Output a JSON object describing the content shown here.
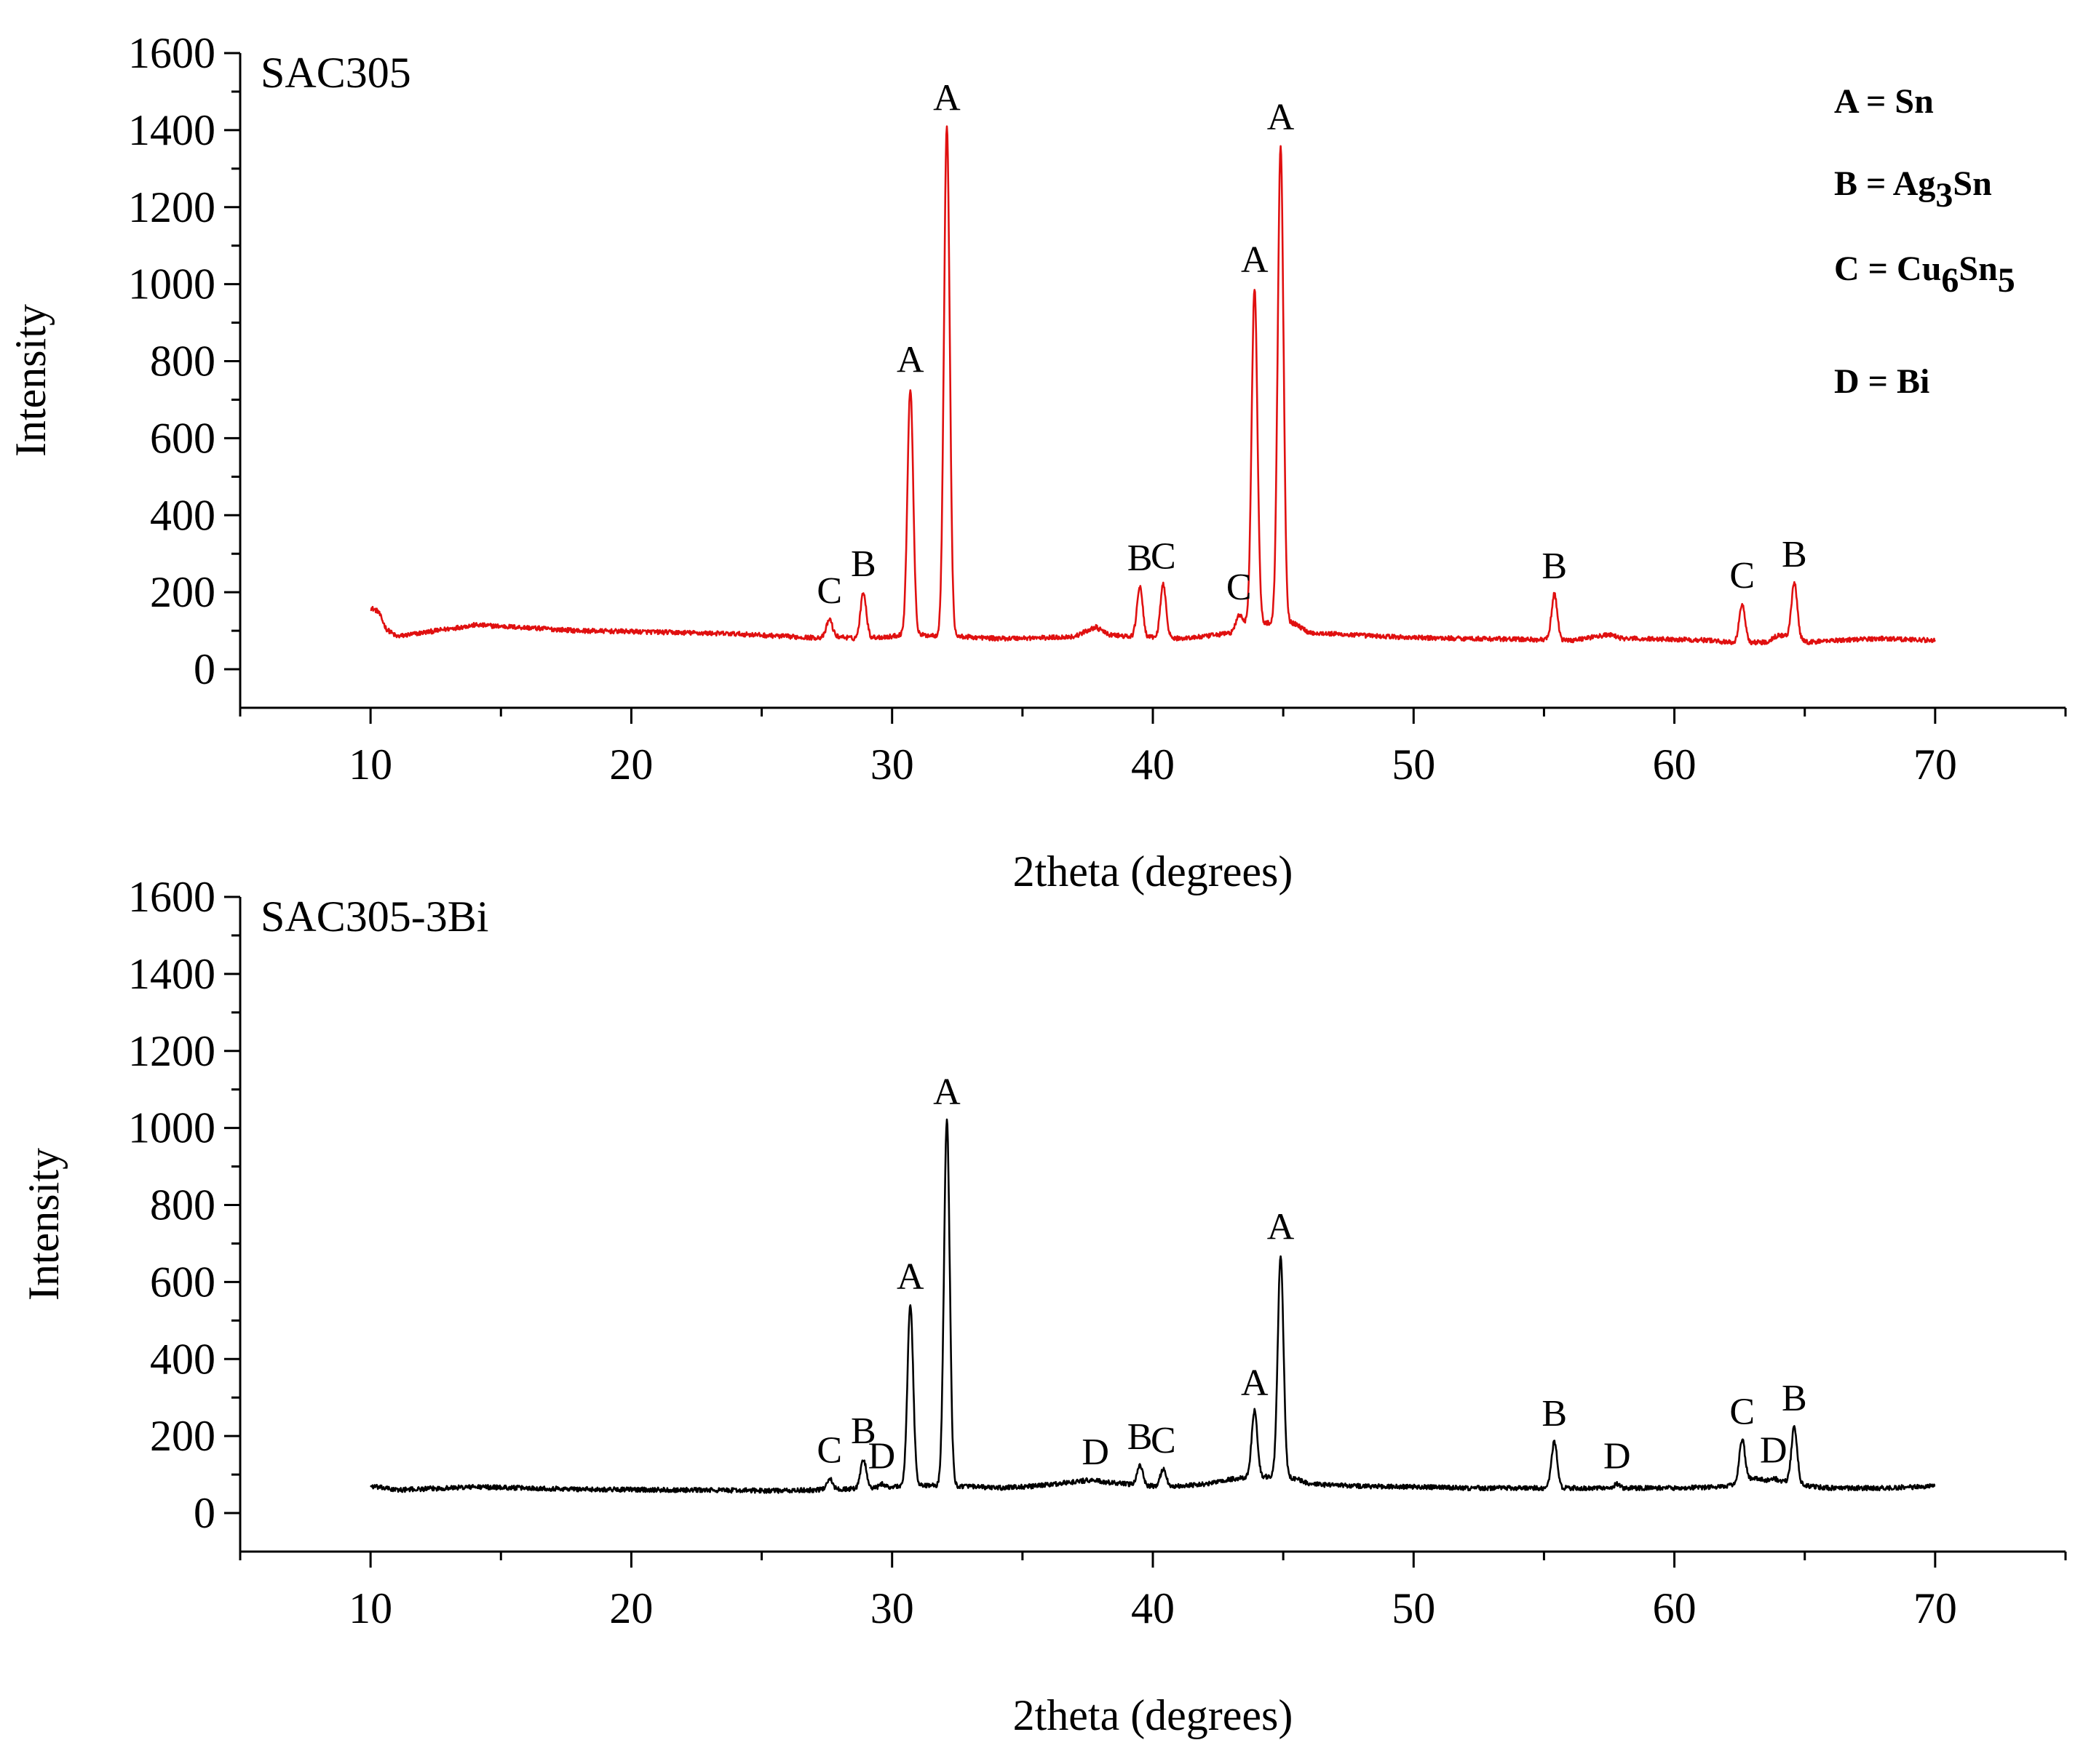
{
  "chart_data": [
    {
      "type": "line",
      "title": "SAC305",
      "xlabel": "2theta (degrees)",
      "ylabel": "Intensity",
      "xlim": [
        5,
        75
      ],
      "ylim": [
        -100,
        1600
      ],
      "xticks": [
        10,
        20,
        30,
        40,
        50,
        60,
        70
      ],
      "yticks": [
        0,
        200,
        400,
        600,
        800,
        1000,
        1200,
        1400,
        1600
      ],
      "grid": false,
      "color": "#e01010",
      "baseline": [
        [
          10.0,
          160
        ],
        [
          10.3,
          150
        ],
        [
          10.6,
          105
        ],
        [
          11.0,
          85
        ],
        [
          11.5,
          90
        ],
        [
          12.5,
          100
        ],
        [
          14.0,
          115
        ],
        [
          16.0,
          108
        ],
        [
          18.0,
          100
        ],
        [
          20.0,
          98
        ],
        [
          22.0,
          95
        ],
        [
          24.0,
          92
        ],
        [
          26.0,
          85
        ],
        [
          27.0,
          82
        ],
        [
          28.0,
          85
        ],
        [
          28.5,
          80
        ],
        [
          30.0,
          85
        ],
        [
          30.3,
          90
        ],
        [
          31.5,
          88
        ],
        [
          32.6,
          85
        ],
        [
          34.0,
          80
        ],
        [
          36.0,
          82
        ],
        [
          37.0,
          85
        ],
        [
          37.8,
          110
        ],
        [
          38.3,
          90
        ],
        [
          39.0,
          85
        ],
        [
          41.0,
          80
        ],
        [
          42.0,
          85
        ],
        [
          43.0,
          95
        ],
        [
          43.5,
          120
        ],
        [
          45.4,
          120
        ],
        [
          46.0,
          95
        ],
        [
          48.0,
          88
        ],
        [
          50.0,
          82
        ],
        [
          52.0,
          80
        ],
        [
          54.0,
          78
        ],
        [
          56.0,
          75
        ],
        [
          57.5,
          90
        ],
        [
          58.0,
          80
        ],
        [
          60.0,
          78
        ],
        [
          61.5,
          75
        ],
        [
          62.0,
          70
        ],
        [
          63.5,
          70
        ],
        [
          64.0,
          90
        ],
        [
          65.2,
          70
        ],
        [
          66.0,
          75
        ],
        [
          68.0,
          80
        ],
        [
          70.0,
          75
        ]
      ],
      "peaks": [
        {
          "x": 27.6,
          "intensity": 130,
          "label": "C"
        },
        {
          "x": 28.9,
          "intensity": 200,
          "label": "B"
        },
        {
          "x": 30.7,
          "intensity": 730,
          "label": "A"
        },
        {
          "x": 32.1,
          "intensity": 1410,
          "label": "A"
        },
        {
          "x": 39.5,
          "intensity": 215,
          "label": "B"
        },
        {
          "x": 40.4,
          "intensity": 220,
          "label": "C"
        },
        {
          "x": 43.3,
          "intensity": 140,
          "label": "C"
        },
        {
          "x": 43.9,
          "intensity": 990,
          "label": "A"
        },
        {
          "x": 44.9,
          "intensity": 1360,
          "label": "A"
        },
        {
          "x": 55.4,
          "intensity": 195,
          "label": "B"
        },
        {
          "x": 62.6,
          "intensity": 170,
          "label": "C"
        },
        {
          "x": 64.6,
          "intensity": 225,
          "label": "B"
        }
      ],
      "legend": {
        "position": "top-right",
        "entries": [
          {
            "letter": "A",
            "sep": " = ",
            "parts": [
              {
                "t": "Sn"
              }
            ]
          },
          {
            "letter": "B",
            "sep": " = ",
            "parts": [
              {
                "t": "Ag"
              },
              {
                "t": "3",
                "sub": true
              },
              {
                "t": "Sn"
              }
            ]
          },
          {
            "letter": "C",
            "sep": " = ",
            "parts": [
              {
                "t": "Cu"
              },
              {
                "t": "6",
                "sub": true
              },
              {
                "t": "Sn"
              },
              {
                "t": "5",
                "sub": true
              }
            ]
          },
          {
            "letter": "D",
            "sep": " = ",
            "parts": [
              {
                "t": "Bi"
              }
            ]
          }
        ]
      }
    },
    {
      "type": "line",
      "title": "SAC305-3Bi",
      "xlabel": "2theta (degrees)",
      "ylabel": "Intensity",
      "xlim": [
        5,
        75
      ],
      "ylim": [
        -100,
        1600
      ],
      "xticks": [
        10,
        20,
        30,
        40,
        50,
        60,
        70
      ],
      "yticks": [
        0,
        200,
        400,
        600,
        800,
        1000,
        1200,
        1400,
        1600
      ],
      "grid": false,
      "color": "#000000",
      "baseline": [
        [
          10.0,
          70
        ],
        [
          10.5,
          65
        ],
        [
          11.0,
          60
        ],
        [
          14.0,
          68
        ],
        [
          18.0,
          62
        ],
        [
          22.0,
          60
        ],
        [
          26.0,
          58
        ],
        [
          27.0,
          60
        ],
        [
          28.0,
          62
        ],
        [
          29.5,
          65
        ],
        [
          30.2,
          70
        ],
        [
          31.3,
          72
        ],
        [
          32.7,
          70
        ],
        [
          34.0,
          65
        ],
        [
          35.5,
          70
        ],
        [
          37.5,
          85
        ],
        [
          38.2,
          80
        ],
        [
          39.0,
          75
        ],
        [
          40.0,
          70
        ],
        [
          41.0,
          70
        ],
        [
          42.0,
          75
        ],
        [
          43.2,
          90
        ],
        [
          44.4,
          95
        ],
        [
          45.5,
          90
        ],
        [
          46.0,
          75
        ],
        [
          48.0,
          70
        ],
        [
          50.0,
          68
        ],
        [
          52.0,
          65
        ],
        [
          54.0,
          65
        ],
        [
          56.0,
          65
        ],
        [
          58.0,
          65
        ],
        [
          60.0,
          65
        ],
        [
          62.0,
          68
        ],
        [
          63.0,
          90
        ],
        [
          63.5,
          85
        ],
        [
          64.0,
          85
        ],
        [
          65.1,
          70
        ],
        [
          66.0,
          65
        ],
        [
          68.0,
          65
        ],
        [
          70.0,
          70
        ]
      ],
      "peaks": [
        {
          "x": 27.6,
          "intensity": 90,
          "label": "C"
        },
        {
          "x": 28.9,
          "intensity": 140,
          "label": "B"
        },
        {
          "x": 29.6,
          "intensity": 75,
          "label": "D"
        },
        {
          "x": 30.7,
          "intensity": 540,
          "label": "A"
        },
        {
          "x": 32.1,
          "intensity": 1020,
          "label": "A"
        },
        {
          "x": 37.8,
          "intensity": 85,
          "label": "D"
        },
        {
          "x": 39.5,
          "intensity": 125,
          "label": "B"
        },
        {
          "x": 40.4,
          "intensity": 115,
          "label": "C"
        },
        {
          "x": 43.9,
          "intensity": 265,
          "label": "A"
        },
        {
          "x": 44.9,
          "intensity": 670,
          "label": "A"
        },
        {
          "x": 55.4,
          "intensity": 185,
          "label": "B"
        },
        {
          "x": 57.8,
          "intensity": 75,
          "label": "D"
        },
        {
          "x": 62.6,
          "intensity": 190,
          "label": "C"
        },
        {
          "x": 63.8,
          "intensity": 90,
          "label": "D"
        },
        {
          "x": 64.6,
          "intensity": 225,
          "label": "B"
        }
      ]
    }
  ]
}
